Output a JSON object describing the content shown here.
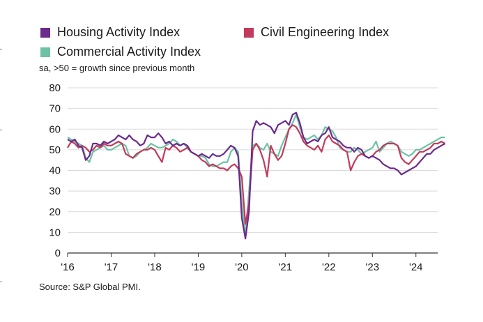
{
  "chart_data": {
    "type": "line",
    "subtitle": "sa, >50 = growth since previous month",
    "source": "Source: S&P Global PMI.",
    "xlabel": "",
    "ylabel": "",
    "ylim": [
      0,
      80
    ],
    "yticks": [
      0,
      10,
      20,
      30,
      40,
      50,
      60,
      70,
      80
    ],
    "xtick_labels": [
      "'16",
      "'17",
      "'18",
      "'19",
      "'20",
      "'21",
      "'22",
      "'23",
      "'24"
    ],
    "xtick_years": [
      2016,
      2017,
      2018,
      2019,
      2020,
      2021,
      2022,
      2023,
      2024
    ],
    "grid": true,
    "legend_placement": "top",
    "x_start_year": 2016,
    "points_per_year": 12,
    "series": [
      {
        "name": "Housing Activity Index",
        "color": "#6b2a8c",
        "values": [
          55,
          54,
          55,
          52,
          51,
          45,
          47,
          53,
          53,
          52,
          54,
          53,
          54,
          55,
          57,
          56,
          55,
          57,
          55,
          54,
          52,
          53,
          57,
          56,
          56,
          58,
          56,
          53,
          54,
          52,
          53,
          52,
          53,
          52,
          49,
          48,
          47,
          48,
          47,
          46,
          48,
          47,
          47,
          48,
          50,
          52,
          51,
          47,
          17,
          7,
          20,
          59,
          64,
          62,
          63,
          62,
          61,
          58,
          62,
          63,
          64,
          62,
          67,
          68,
          63,
          56,
          53,
          54,
          55,
          54,
          57,
          58,
          61,
          56,
          55,
          54,
          52,
          51,
          51,
          49,
          51,
          50,
          47,
          46,
          47,
          46,
          45,
          43,
          42,
          41,
          41,
          40,
          38,
          39,
          40,
          41,
          42,
          44,
          46,
          48,
          48,
          50,
          51,
          52,
          53
        ]
      },
      {
        "name": "Civil Engineering Index",
        "color": "#c23a5c",
        "values": [
          51,
          54,
          53,
          51,
          52,
          51,
          49,
          50,
          52,
          51,
          53,
          52,
          52,
          53,
          54,
          53,
          48,
          47,
          46,
          48,
          49,
          50,
          50,
          51,
          50,
          47,
          44,
          51,
          50,
          52,
          51,
          49,
          50,
          51,
          49,
          48,
          47,
          45,
          44,
          42,
          43,
          42,
          41,
          41,
          40,
          42,
          43,
          41,
          37,
          14,
          24,
          50,
          53,
          50,
          45,
          37,
          52,
          48,
          45,
          47,
          53,
          60,
          62,
          61,
          58,
          54,
          52,
          51,
          50,
          52,
          49,
          55,
          57,
          54,
          53,
          52,
          50,
          49,
          40,
          44,
          47,
          48,
          47,
          46,
          47,
          49,
          50,
          52,
          53,
          53,
          53,
          52,
          46,
          44,
          43,
          45,
          47,
          49,
          49,
          50,
          51,
          53,
          53,
          54,
          53
        ]
      },
      {
        "name": "Commercial Activity Index",
        "color": "#6cc3a4",
        "values": [
          56,
          55,
          54,
          53,
          52,
          46,
          44,
          49,
          50,
          51,
          52,
          50,
          50,
          51,
          52,
          53,
          52,
          47,
          46,
          47,
          49,
          50,
          51,
          53,
          52,
          51,
          51,
          52,
          53,
          55,
          54,
          52,
          53,
          51,
          49,
          48,
          47,
          47,
          46,
          43,
          42,
          42,
          43,
          44,
          44,
          49,
          51,
          49,
          25,
          8,
          30,
          52,
          53,
          51,
          50,
          53,
          49,
          48,
          47,
          52,
          56,
          60,
          63,
          67,
          61,
          56,
          55,
          56,
          57,
          55,
          57,
          61,
          60,
          59,
          56,
          51,
          50,
          49,
          49,
          51,
          50,
          48,
          49,
          50,
          51,
          54,
          49,
          51,
          53,
          54,
          53,
          52,
          49,
          48,
          47,
          48,
          50,
          50,
          51,
          52,
          53,
          54,
          55,
          56,
          56
        ]
      }
    ]
  }
}
